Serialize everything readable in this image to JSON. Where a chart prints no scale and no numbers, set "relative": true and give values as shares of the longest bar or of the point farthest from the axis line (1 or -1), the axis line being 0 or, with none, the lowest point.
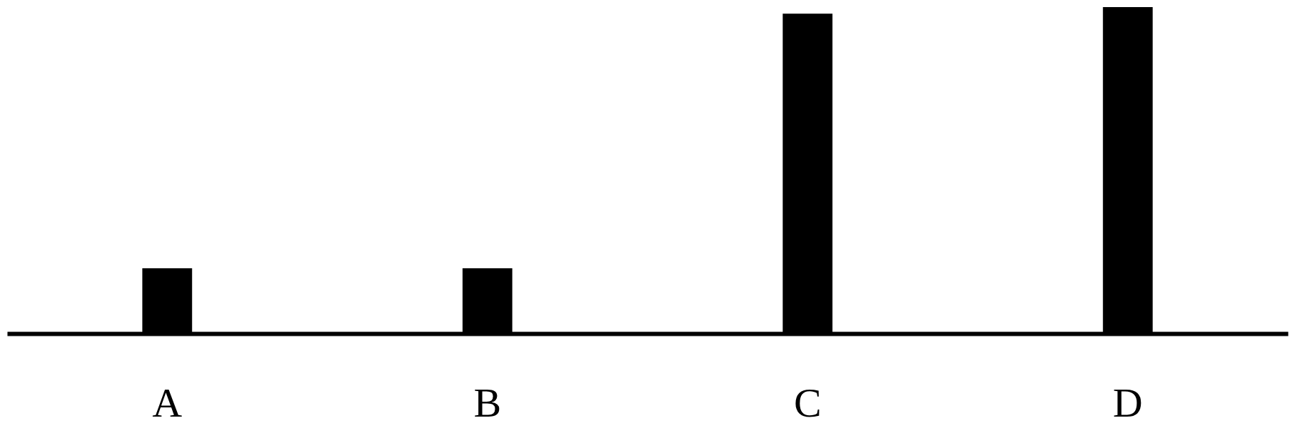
{
  "chart_data": {
    "type": "bar",
    "relative": true,
    "categories": [
      "A",
      "B",
      "C",
      "D"
    ],
    "values": [
      0.2,
      0.2,
      0.98,
      1
    ],
    "color": "#000000"
  }
}
